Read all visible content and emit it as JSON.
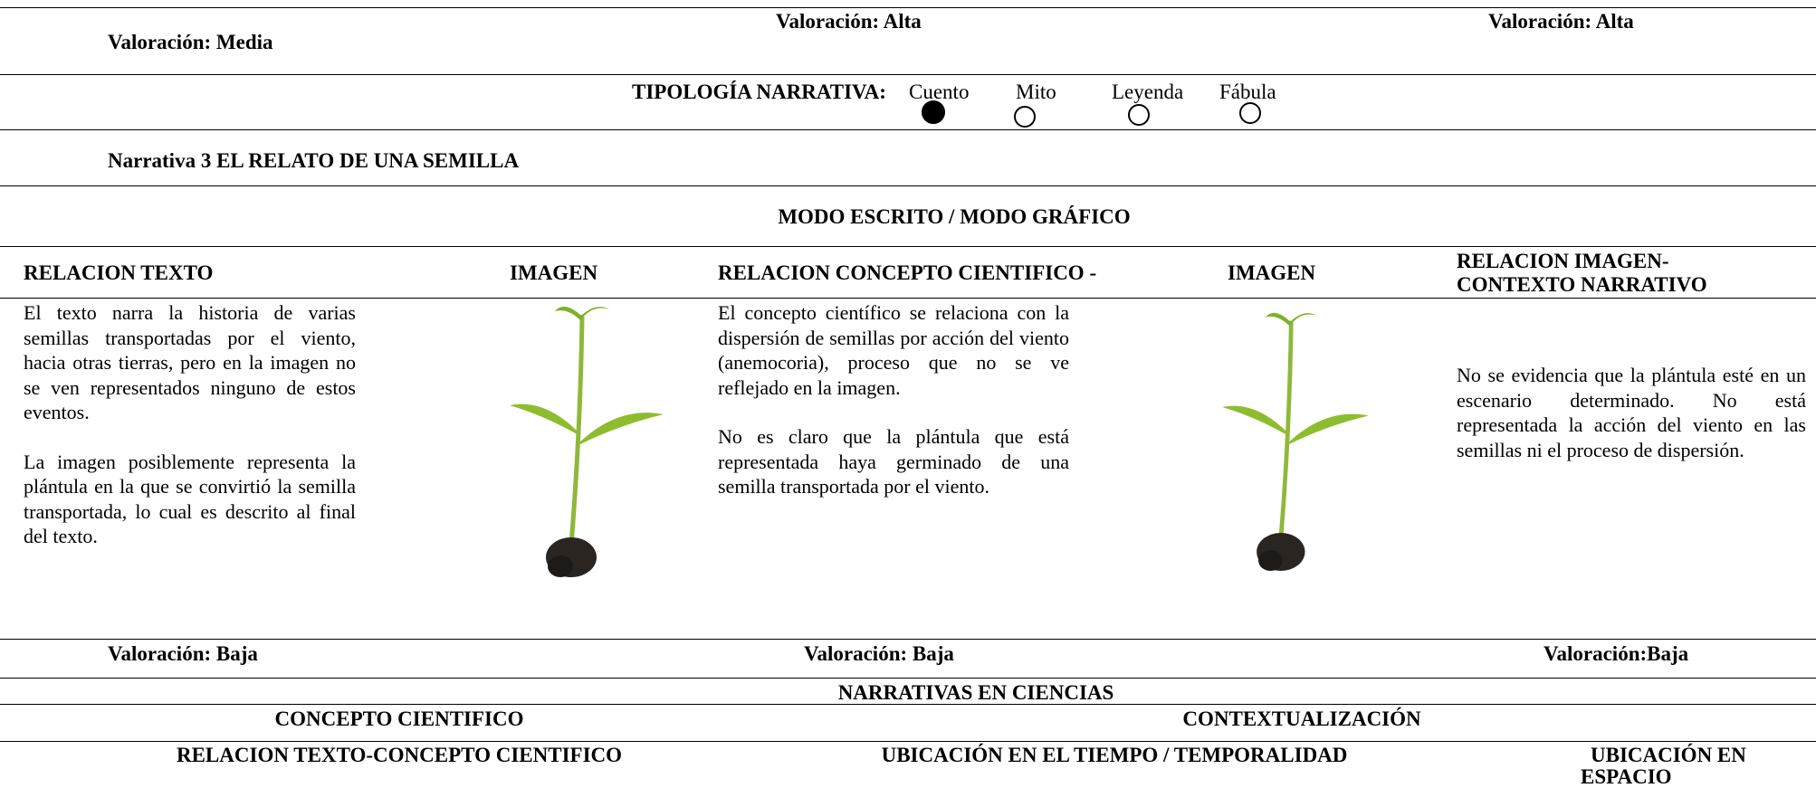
{
  "top_row": {
    "ratings": [
      "Valoración: Media",
      "Valoración: Alta",
      "Valoración: Alta"
    ]
  },
  "typology": {
    "label": "TIPOLOGÍA NARRATIVA:",
    "options": [
      "Cuento",
      "Mito",
      "Leyenda",
      "Fábula"
    ]
  },
  "narrative_title": "Narrativa 3 EL RELATO DE UNA SEMILLA",
  "section_title": "MODO ESCRITO / MODO GRÁFICO",
  "headers": [
    "RELACION TEXTO",
    "IMAGEN",
    "RELACION CONCEPTO CIENTIFICO -",
    "IMAGEN",
    "RELACION IMAGEN-",
    "CONTEXTO NARRATIVO"
  ],
  "column_texts": {
    "text_relation": [
      "El texto narra la historia de varias semillas transportadas por el viento, hacia otras tierras, pero en la imagen no se ven representados ninguno de estos eventos.",
      "La imagen posiblemente representa la plántula en la que se convirtió la semilla transportada, lo cual es descrito al final del texto."
    ],
    "concept_relation": [
      "El concepto científico se relaciona con la dispersión de semillas por acción del viento (anemocoria), proceso que no se ve reflejado en la imagen.",
      "No es claro que la plántula que está representada haya germinado de una semilla transportada por el viento."
    ],
    "context_relation": [
      "No se evidencia que la plántula esté en un escenario determinado. No está representada la acción del viento en las semillas ni el proceso de dispersión."
    ]
  },
  "bottom_ratings": [
    "Valoración: Baja",
    "Valoración: Baja",
    "Valoración:Baja"
  ],
  "footer": {
    "title": "NARRATIVAS EN CIENCIAS",
    "groups": [
      "CONCEPTO CIENTIFICO",
      "CONTEXTUALIZACIÓN"
    ],
    "columns": [
      "RELACION TEXTO-CONCEPTO CIENTIFICO",
      "UBICACIÓN EN EL TIEMPO / TEMPORALIDAD",
      "UBICACIÓN EN",
      "ESPACIO"
    ]
  }
}
